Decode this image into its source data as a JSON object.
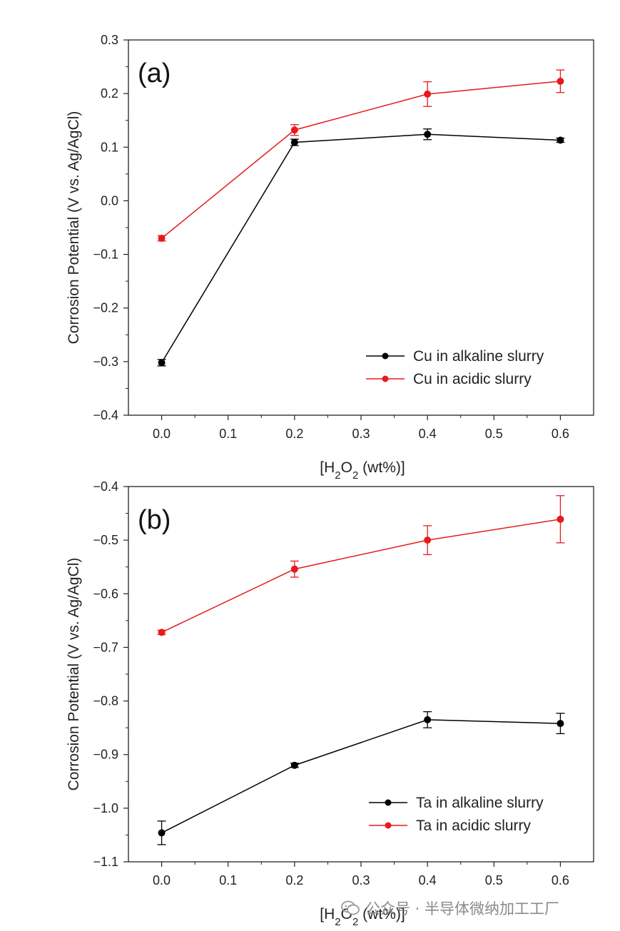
{
  "chart_data": [
    {
      "type": "line",
      "panel_label": "(a)",
      "xlabel": "[H2O2 (wt%)]",
      "ylabel": "Corrosion Potential (V vs. Ag/AgCl)",
      "xlim": [
        -0.05,
        0.65
      ],
      "ylim": [
        -0.4,
        0.3
      ],
      "xticks": [
        "0.0",
        "0.1",
        "0.2",
        "0.3",
        "0.4",
        "0.5",
        "0.6"
      ],
      "yticks": [
        "-0.4",
        "-0.3",
        "-0.2",
        "-0.1",
        "0.0",
        "0.1",
        "0.2",
        "0.3"
      ],
      "grid": false,
      "legend_position": "bottom-right",
      "series": [
        {
          "name": "Cu in alkaline slurry",
          "color": "#000000",
          "x": [
            0.0,
            0.2,
            0.4,
            0.6
          ],
          "y": [
            -0.302,
            0.109,
            0.124,
            0.113
          ],
          "err": [
            0.006,
            0.006,
            0.01,
            0.004
          ]
        },
        {
          "name": "Cu in acidic slurry",
          "color": "#e8191c",
          "x": [
            0.0,
            0.2,
            0.4,
            0.6
          ],
          "y": [
            -0.07,
            0.132,
            0.199,
            0.223
          ],
          "err": [
            0.005,
            0.01,
            0.023,
            0.021
          ]
        }
      ]
    },
    {
      "type": "line",
      "panel_label": "(b)",
      "xlabel": "[H2O2 (wt%)]",
      "ylabel": "Corrosion Potential (V vs. Ag/AgCl)",
      "xlim": [
        -0.05,
        0.65
      ],
      "ylim": [
        -1.1,
        -0.4
      ],
      "xticks": [
        "0.0",
        "0.1",
        "0.2",
        "0.3",
        "0.4",
        "0.5",
        "0.6"
      ],
      "yticks": [
        "-1.1",
        "-1.0",
        "-0.9",
        "-0.8",
        "-0.7",
        "-0.6",
        "-0.5",
        "-0.4"
      ],
      "grid": false,
      "legend_position": "bottom-right",
      "series": [
        {
          "name": "Ta in alkaline slurry",
          "color": "#000000",
          "x": [
            0.0,
            0.2,
            0.4,
            0.6
          ],
          "y": [
            -1.046,
            -0.92,
            -0.835,
            -0.842
          ],
          "err": [
            0.022,
            0.004,
            0.015,
            0.019
          ]
        },
        {
          "name": "Ta in acidic slurry",
          "color": "#e8191c",
          "x": [
            0.0,
            0.2,
            0.4,
            0.6
          ],
          "y": [
            -0.672,
            -0.554,
            -0.5,
            -0.461
          ],
          "err": [
            0.004,
            0.015,
            0.027,
            0.044
          ]
        }
      ]
    }
  ],
  "watermark": {
    "text": "公众号 · 半导体微纳加工工厂",
    "icon": "wechat-icon"
  }
}
